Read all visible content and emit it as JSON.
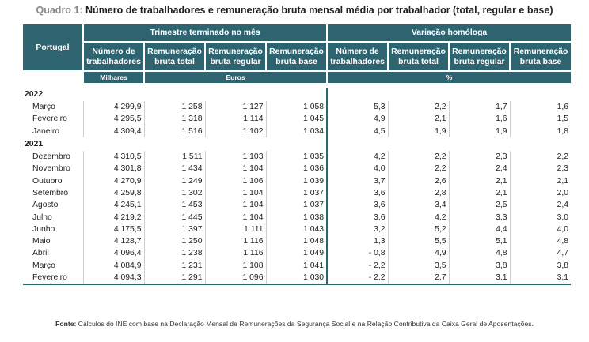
{
  "title": {
    "prefix": "Quadro 1:",
    "text": "Número de trabalhadores e remuneração bruta mensal média por trabalhador (total, regular e base)"
  },
  "header": {
    "row_label": "Portugal",
    "group1": "Trimestre terminado no mês",
    "group2": "Variação homóloga",
    "columns": [
      "Número de trabalhadores",
      "Remuneração bruta total",
      "Remuneração bruta regular",
      "Remuneração bruta base",
      "Número de trabalhadores",
      "Remuneração bruta total",
      "Remuneração bruta regular",
      "Remuneração bruta base"
    ],
    "units": {
      "milhares": "Milhares",
      "euros": "Euros",
      "pct": "%"
    }
  },
  "groups": [
    {
      "year": "2022",
      "rows": [
        {
          "month": "Março",
          "values": [
            "4 299,9",
            "1 258",
            "1 127",
            "1 058",
            "5,3",
            "2,2",
            "1,7",
            "1,6"
          ]
        },
        {
          "month": "Fevereiro",
          "values": [
            "4 295,5",
            "1 318",
            "1 114",
            "1 045",
            "4,9",
            "2,1",
            "1,6",
            "1,5"
          ]
        },
        {
          "month": "Janeiro",
          "values": [
            "4 309,4",
            "1 516",
            "1 102",
            "1 034",
            "4,5",
            "1,9",
            "1,9",
            "1,8"
          ]
        }
      ]
    },
    {
      "year": "2021",
      "rows": [
        {
          "month": "Dezembro",
          "values": [
            "4 310,5",
            "1 511",
            "1 103",
            "1 035",
            "4,2",
            "2,2",
            "2,3",
            "2,2"
          ]
        },
        {
          "month": "Novembro",
          "values": [
            "4 301,8",
            "1 434",
            "1 104",
            "1 036",
            "4,0",
            "2,2",
            "2,4",
            "2,3"
          ]
        },
        {
          "month": "Outubro",
          "values": [
            "4 270,9",
            "1 249",
            "1 106",
            "1 039",
            "3,7",
            "2,6",
            "2,1",
            "2,1"
          ]
        },
        {
          "month": "Setembro",
          "values": [
            "4 259,8",
            "1 302",
            "1 104",
            "1 037",
            "3,6",
            "2,8",
            "2,1",
            "2,0"
          ]
        },
        {
          "month": "Agosto",
          "values": [
            "4 245,1",
            "1 453",
            "1 104",
            "1 037",
            "3,6",
            "3,4",
            "2,5",
            "2,4"
          ]
        },
        {
          "month": "Julho",
          "values": [
            "4 219,2",
            "1 445",
            "1 104",
            "1 038",
            "3,6",
            "4,2",
            "3,3",
            "3,0"
          ]
        },
        {
          "month": "Junho",
          "values": [
            "4 175,5",
            "1 397",
            "1 111",
            "1 043",
            "3,2",
            "5,2",
            "4,4",
            "4,0"
          ]
        },
        {
          "month": "Maio",
          "values": [
            "4 128,7",
            "1 250",
            "1 116",
            "1 048",
            "1,3",
            "5,5",
            "5,1",
            "4,8"
          ]
        },
        {
          "month": "Abril",
          "values": [
            "4 096,4",
            "1 238",
            "1 116",
            "1 049",
            "- 0,8",
            "4,9",
            "4,8",
            "4,7"
          ]
        },
        {
          "month": "Março",
          "values": [
            "4 084,9",
            "1 231",
            "1 108",
            "1 041",
            "- 2,2",
            "3,5",
            "3,8",
            "3,8"
          ]
        },
        {
          "month": "Fevereiro",
          "values": [
            "4 094,3",
            "1 291",
            "1 096",
            "1 030",
            "- 2,2",
            "2,7",
            "3,1",
            "3,1"
          ]
        }
      ]
    }
  ],
  "source": {
    "label": "Fonte:",
    "text": "Cálculos do INE com base na Declaração Mensal de Remunerações da Segurança Social e na Relação Contributiva da Caixa Geral de Aposentações."
  }
}
